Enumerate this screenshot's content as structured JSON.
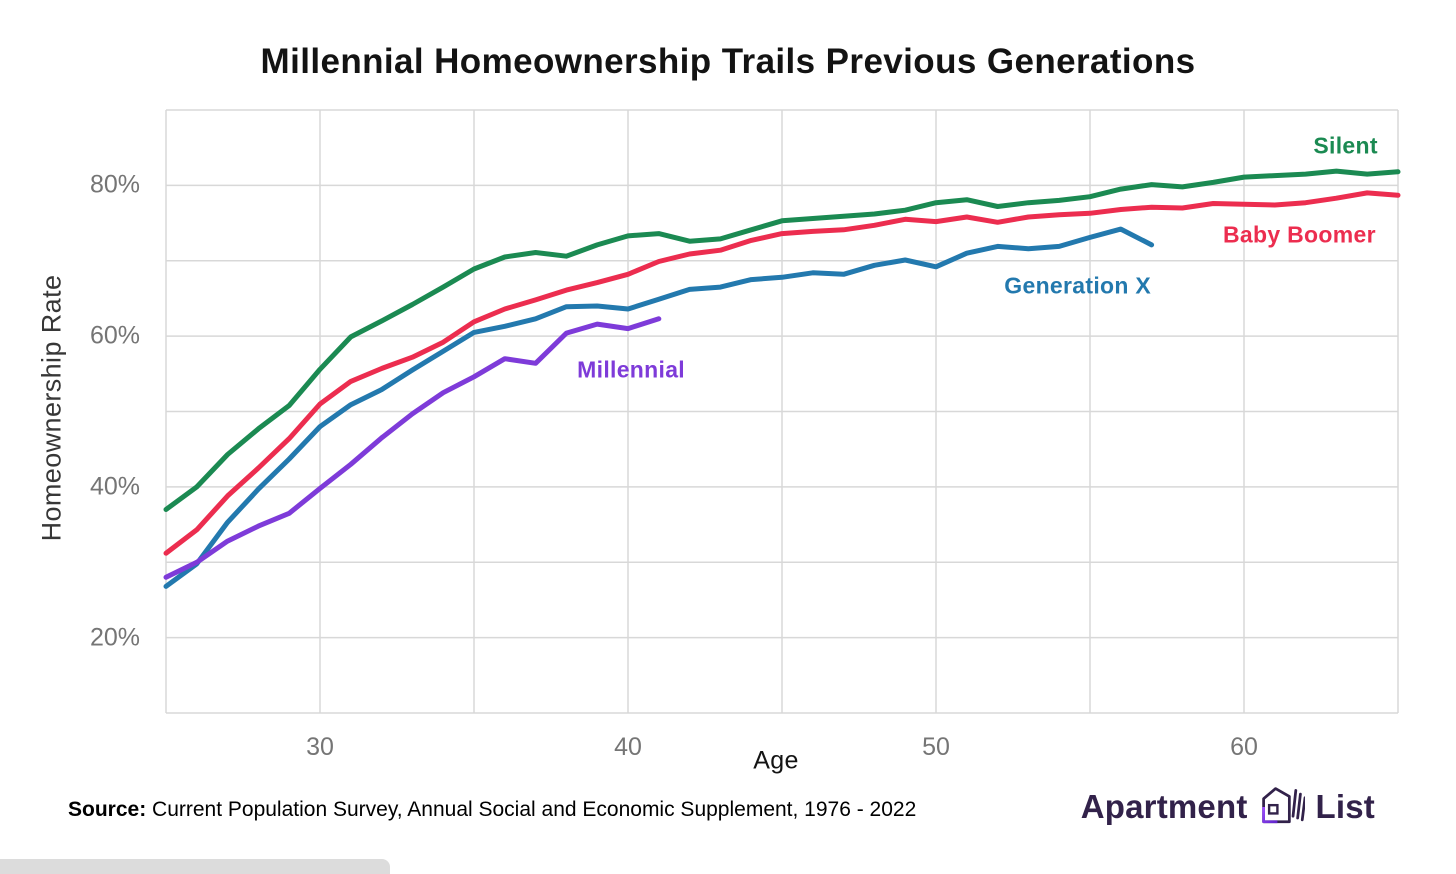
{
  "title": "Millennial Homeownership Trails Previous Generations",
  "source": {
    "prefix": "Source:",
    "text": " Current Population Survey, Annual Social and Economic Supplement, 1976 - 2022"
  },
  "logo": {
    "word1": "Apartment",
    "word2": "List",
    "color": "#32224a",
    "accent_gradient": [
      "#9d4dff",
      "#5f24c9"
    ]
  },
  "colors": {
    "background": "#ffffff",
    "grid": "#d8d8d8",
    "tick_text": "#757575",
    "title_text": "#131313",
    "axis_title_text": "#141414"
  },
  "chart_data": {
    "type": "line",
    "title": "Millennial Homeownership Trails Previous Generations",
    "xlabel": "Age",
    "ylabel": "Homeownership Rate",
    "xlim": [
      25,
      65
    ],
    "ylim": [
      10,
      90
    ],
    "x_gridline_step": 5,
    "y_gridline_step": 10,
    "xticks": [
      30,
      40,
      50,
      60
    ],
    "yticks": [
      20,
      40,
      60,
      80
    ],
    "ytick_suffix": "%",
    "grid": true,
    "legend": "inline-labels",
    "x_unit": "age_years",
    "y_unit": "percent",
    "series": [
      {
        "name": "Silent",
        "color": "#1b8a52",
        "start_age": 25,
        "values": [
          37.0,
          40.0,
          44.3,
          47.7,
          50.8,
          55.6,
          59.9,
          62.0,
          64.2,
          66.5,
          68.9,
          70.5,
          71.1,
          70.6,
          72.1,
          73.3,
          73.6,
          72.6,
          72.9,
          74.1,
          75.3,
          75.6,
          75.9,
          76.2,
          76.7,
          77.7,
          78.1,
          77.2,
          77.7,
          78.0,
          78.5,
          79.5,
          80.1,
          79.8,
          80.4,
          81.1,
          81.3,
          81.5,
          81.9,
          81.5,
          81.8
        ],
        "label": {
          "text": "Silent",
          "x": 63.3,
          "y": 85.2
        }
      },
      {
        "name": "Baby Boomer",
        "color": "#ec2d4f",
        "start_age": 25,
        "values": [
          31.2,
          34.3,
          38.8,
          42.5,
          46.4,
          51.0,
          54.0,
          55.7,
          57.2,
          59.2,
          61.9,
          63.6,
          64.8,
          66.1,
          67.1,
          68.2,
          69.9,
          70.9,
          71.4,
          72.7,
          73.6,
          73.9,
          74.1,
          74.7,
          75.5,
          75.2,
          75.8,
          75.1,
          75.8,
          76.1,
          76.3,
          76.8,
          77.1,
          77.0,
          77.6,
          77.5,
          77.4,
          77.7,
          78.3,
          79.0,
          78.7
        ],
        "label": {
          "text": "Baby Boomer",
          "x": 61.8,
          "y": 73.4
        }
      },
      {
        "name": "Generation X",
        "color": "#2379ae",
        "start_age": 25,
        "values": [
          26.8,
          29.8,
          35.3,
          39.7,
          43.7,
          48.0,
          50.9,
          52.9,
          55.5,
          58.0,
          60.5,
          61.3,
          62.3,
          63.9,
          64.0,
          63.6,
          64.9,
          66.2,
          66.5,
          67.5,
          67.8,
          68.4,
          68.2,
          69.4,
          70.1,
          69.2,
          71.0,
          71.9,
          71.6,
          71.9,
          73.1,
          74.2,
          72.1
        ],
        "label": {
          "text": "Generation X",
          "x": 54.6,
          "y": 66.6
        }
      },
      {
        "name": "Millennial",
        "color": "#7e3bd9",
        "start_age": 25,
        "values": [
          28.0,
          30.0,
          32.8,
          34.8,
          36.5,
          39.8,
          43.0,
          46.5,
          49.7,
          52.5,
          54.6,
          57.0,
          56.4,
          60.4,
          61.6,
          61.0,
          62.3
        ],
        "label": {
          "text": "Millennial",
          "x": 40.1,
          "y": 55.5
        }
      }
    ]
  }
}
